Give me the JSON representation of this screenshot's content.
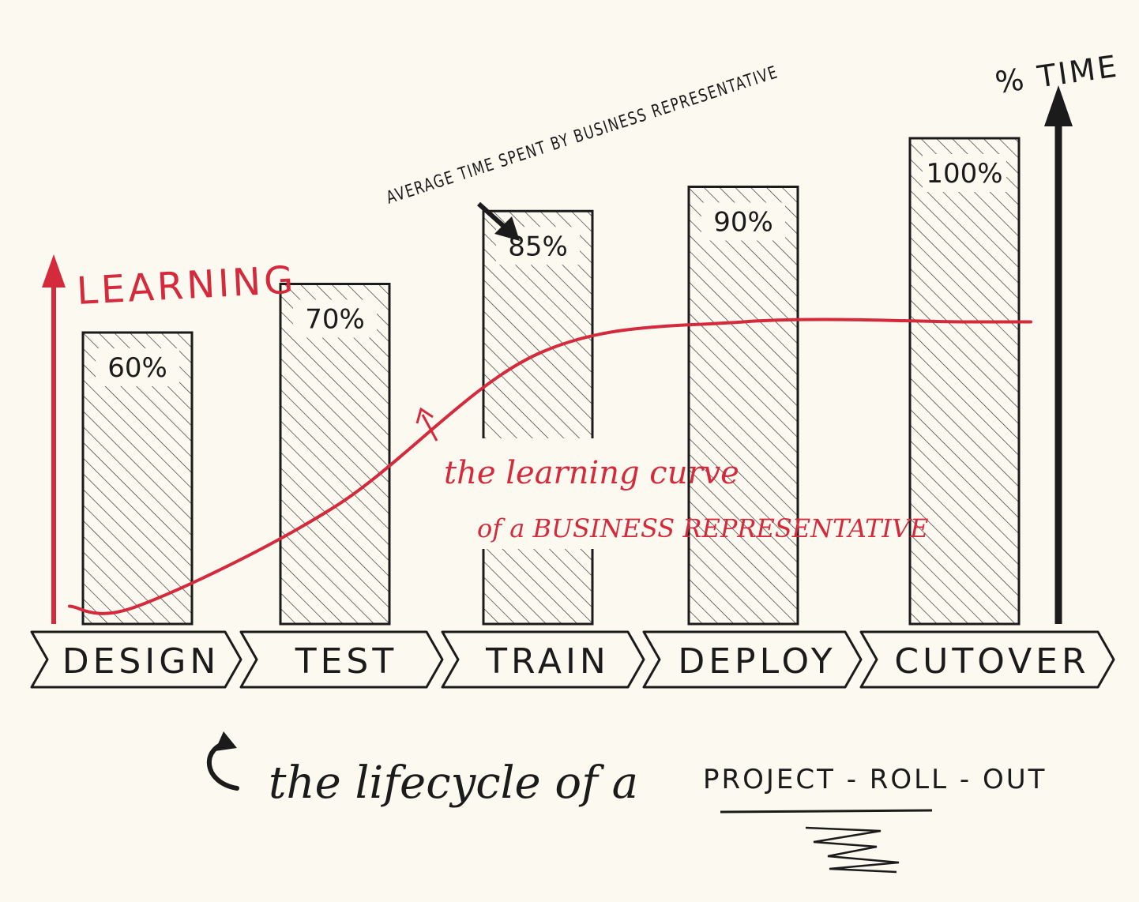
{
  "chart_data": {
    "type": "bar",
    "categories": [
      "DESIGN",
      "TEST",
      "TRAIN",
      "DEPLOY",
      "CUTOVER"
    ],
    "values": [
      60,
      70,
      85,
      90,
      100
    ],
    "value_labels": [
      "60%",
      "70%",
      "85%",
      "90%",
      "100%"
    ],
    "ylim": [
      0,
      100
    ],
    "grid": false,
    "y_axis_label": "% TIME",
    "secondary_axis_label": "LEARNING",
    "bar_annotation": "AVERAGE TIME SPENT BY BUSINESS REPRESENTATIVE",
    "curve_annotation_line1": "the learning curve",
    "curve_annotation_line2": "of a BUSINESS REPRESENTATIVE",
    "learning_curve": {
      "shape": "s-curve",
      "y": [
        0.05,
        0.33,
        0.76,
        0.85,
        0.85
      ]
    },
    "caption_script": "the lifecycle of a",
    "caption_caps": "PROJECT - ROLL - OUT"
  },
  "colors": {
    "ink": "#1b1b1b",
    "learning_red": "#d42a3c",
    "paper": "#fbf9f0"
  }
}
